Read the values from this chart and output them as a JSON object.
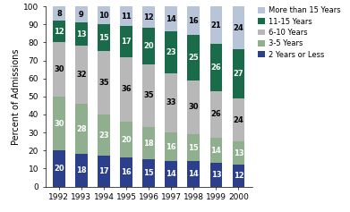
{
  "years": [
    "1992",
    "1993",
    "1994",
    "1995",
    "1996",
    "1997",
    "1998",
    "1999",
    "2000"
  ],
  "series": {
    "2 Years or Less": [
      20,
      18,
      17,
      16,
      15,
      14,
      14,
      13,
      12
    ],
    "3-5 Years": [
      30,
      28,
      23,
      20,
      18,
      16,
      15,
      14,
      13
    ],
    "6-10 Years": [
      30,
      32,
      35,
      36,
      35,
      33,
      30,
      26,
      24
    ],
    "11-15 Years": [
      12,
      13,
      15,
      17,
      20,
      23,
      25,
      26,
      27
    ],
    "More than 15 Years": [
      8,
      9,
      10,
      11,
      12,
      14,
      16,
      21,
      24
    ]
  },
  "colors": {
    "2 Years or Less": "#2b3f8c",
    "3-5 Years": "#8faf8f",
    "6-10 Years": "#b8b8b8",
    "11-15 Years": "#1a6b4a",
    "More than 15 Years": "#b8c4d8"
  },
  "text_colors": {
    "2 Years or Less": "white",
    "3-5 Years": "white",
    "6-10 Years": "black",
    "11-15 Years": "white",
    "More than 15 Years": "black"
  },
  "ylabel": "Percent of Admissions",
  "ylim": [
    0,
    100
  ],
  "yticks": [
    0,
    10,
    20,
    30,
    40,
    50,
    60,
    70,
    80,
    90,
    100
  ],
  "legend_order": [
    "More than 15 Years",
    "11-15 Years",
    "6-10 Years",
    "3-5 Years",
    "2 Years or Less"
  ],
  "label_fontsize": 6.0,
  "axis_fontsize": 7.5
}
